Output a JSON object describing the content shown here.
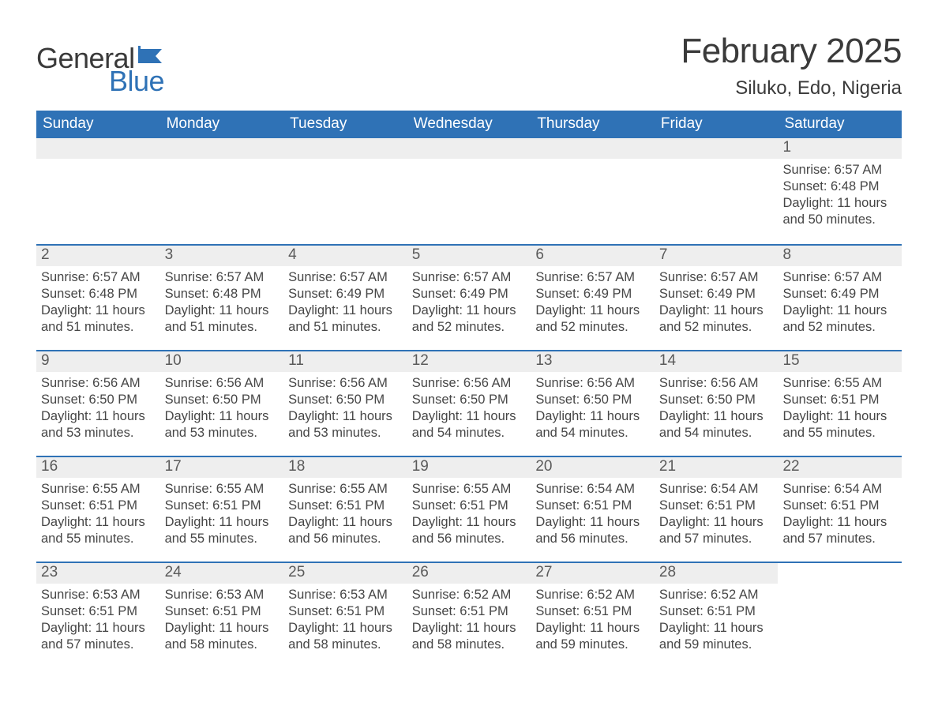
{
  "brand": {
    "word1": "General",
    "word2": "Blue",
    "flag_color": "#2f72b6",
    "word1_color": "#3a3a3a",
    "word2_color": "#2f72b6"
  },
  "title": {
    "month_year": "February 2025",
    "location": "Siluko, Edo, Nigeria"
  },
  "style": {
    "header_bg": "#2f72b6",
    "header_fg": "#ffffff",
    "strip_bg": "#eeeeee",
    "border_color": "#2f72b6",
    "body_text_color": "#464646",
    "page_bg": "#ffffff",
    "title_fontsize_pt": 33,
    "location_fontsize_pt": 18,
    "header_fontsize_pt": 14,
    "cell_fontsize_pt": 12
  },
  "day_names": [
    "Sunday",
    "Monday",
    "Tuesday",
    "Wednesday",
    "Thursday",
    "Friday",
    "Saturday"
  ],
  "weeks": [
    [
      null,
      null,
      null,
      null,
      null,
      null,
      {
        "d": "1",
        "sr": "Sunrise: 6:57 AM",
        "ss": "Sunset: 6:48 PM",
        "dl": "Daylight: 11 hours and 50 minutes."
      }
    ],
    [
      {
        "d": "2",
        "sr": "Sunrise: 6:57 AM",
        "ss": "Sunset: 6:48 PM",
        "dl": "Daylight: 11 hours and 51 minutes."
      },
      {
        "d": "3",
        "sr": "Sunrise: 6:57 AM",
        "ss": "Sunset: 6:48 PM",
        "dl": "Daylight: 11 hours and 51 minutes."
      },
      {
        "d": "4",
        "sr": "Sunrise: 6:57 AM",
        "ss": "Sunset: 6:49 PM",
        "dl": "Daylight: 11 hours and 51 minutes."
      },
      {
        "d": "5",
        "sr": "Sunrise: 6:57 AM",
        "ss": "Sunset: 6:49 PM",
        "dl": "Daylight: 11 hours and 52 minutes."
      },
      {
        "d": "6",
        "sr": "Sunrise: 6:57 AM",
        "ss": "Sunset: 6:49 PM",
        "dl": "Daylight: 11 hours and 52 minutes."
      },
      {
        "d": "7",
        "sr": "Sunrise: 6:57 AM",
        "ss": "Sunset: 6:49 PM",
        "dl": "Daylight: 11 hours and 52 minutes."
      },
      {
        "d": "8",
        "sr": "Sunrise: 6:57 AM",
        "ss": "Sunset: 6:49 PM",
        "dl": "Daylight: 11 hours and 52 minutes."
      }
    ],
    [
      {
        "d": "9",
        "sr": "Sunrise: 6:56 AM",
        "ss": "Sunset: 6:50 PM",
        "dl": "Daylight: 11 hours and 53 minutes."
      },
      {
        "d": "10",
        "sr": "Sunrise: 6:56 AM",
        "ss": "Sunset: 6:50 PM",
        "dl": "Daylight: 11 hours and 53 minutes."
      },
      {
        "d": "11",
        "sr": "Sunrise: 6:56 AM",
        "ss": "Sunset: 6:50 PM",
        "dl": "Daylight: 11 hours and 53 minutes."
      },
      {
        "d": "12",
        "sr": "Sunrise: 6:56 AM",
        "ss": "Sunset: 6:50 PM",
        "dl": "Daylight: 11 hours and 54 minutes."
      },
      {
        "d": "13",
        "sr": "Sunrise: 6:56 AM",
        "ss": "Sunset: 6:50 PM",
        "dl": "Daylight: 11 hours and 54 minutes."
      },
      {
        "d": "14",
        "sr": "Sunrise: 6:56 AM",
        "ss": "Sunset: 6:50 PM",
        "dl": "Daylight: 11 hours and 54 minutes."
      },
      {
        "d": "15",
        "sr": "Sunrise: 6:55 AM",
        "ss": "Sunset: 6:51 PM",
        "dl": "Daylight: 11 hours and 55 minutes."
      }
    ],
    [
      {
        "d": "16",
        "sr": "Sunrise: 6:55 AM",
        "ss": "Sunset: 6:51 PM",
        "dl": "Daylight: 11 hours and 55 minutes."
      },
      {
        "d": "17",
        "sr": "Sunrise: 6:55 AM",
        "ss": "Sunset: 6:51 PM",
        "dl": "Daylight: 11 hours and 55 minutes."
      },
      {
        "d": "18",
        "sr": "Sunrise: 6:55 AM",
        "ss": "Sunset: 6:51 PM",
        "dl": "Daylight: 11 hours and 56 minutes."
      },
      {
        "d": "19",
        "sr": "Sunrise: 6:55 AM",
        "ss": "Sunset: 6:51 PM",
        "dl": "Daylight: 11 hours and 56 minutes."
      },
      {
        "d": "20",
        "sr": "Sunrise: 6:54 AM",
        "ss": "Sunset: 6:51 PM",
        "dl": "Daylight: 11 hours and 56 minutes."
      },
      {
        "d": "21",
        "sr": "Sunrise: 6:54 AM",
        "ss": "Sunset: 6:51 PM",
        "dl": "Daylight: 11 hours and 57 minutes."
      },
      {
        "d": "22",
        "sr": "Sunrise: 6:54 AM",
        "ss": "Sunset: 6:51 PM",
        "dl": "Daylight: 11 hours and 57 minutes."
      }
    ],
    [
      {
        "d": "23",
        "sr": "Sunrise: 6:53 AM",
        "ss": "Sunset: 6:51 PM",
        "dl": "Daylight: 11 hours and 57 minutes."
      },
      {
        "d": "24",
        "sr": "Sunrise: 6:53 AM",
        "ss": "Sunset: 6:51 PM",
        "dl": "Daylight: 11 hours and 58 minutes."
      },
      {
        "d": "25",
        "sr": "Sunrise: 6:53 AM",
        "ss": "Sunset: 6:51 PM",
        "dl": "Daylight: 11 hours and 58 minutes."
      },
      {
        "d": "26",
        "sr": "Sunrise: 6:52 AM",
        "ss": "Sunset: 6:51 PM",
        "dl": "Daylight: 11 hours and 58 minutes."
      },
      {
        "d": "27",
        "sr": "Sunrise: 6:52 AM",
        "ss": "Sunset: 6:51 PM",
        "dl": "Daylight: 11 hours and 59 minutes."
      },
      {
        "d": "28",
        "sr": "Sunrise: 6:52 AM",
        "ss": "Sunset: 6:51 PM",
        "dl": "Daylight: 11 hours and 59 minutes."
      },
      null
    ]
  ]
}
